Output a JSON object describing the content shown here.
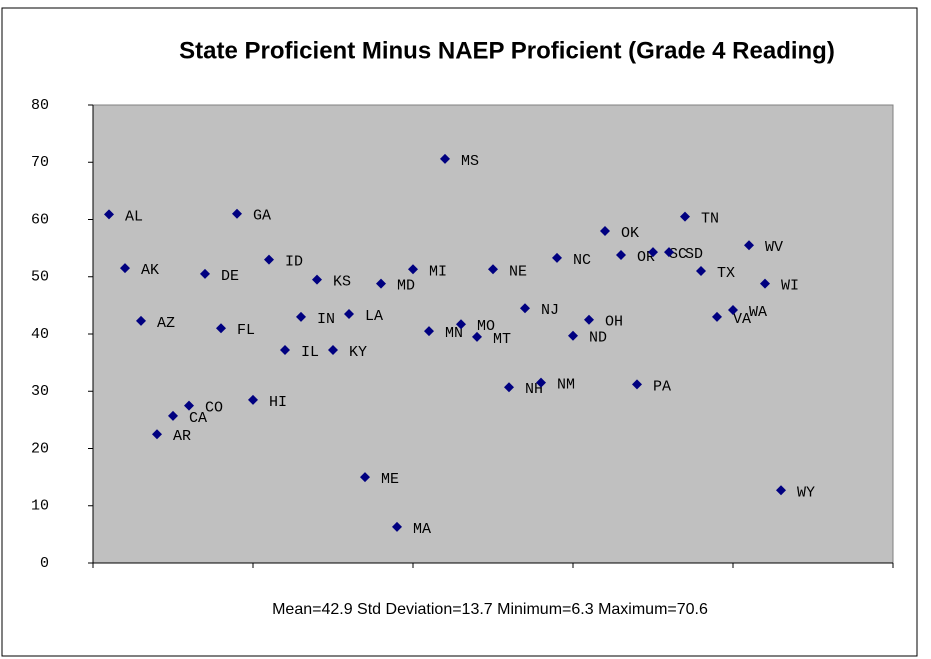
{
  "chart_data": {
    "type": "scatter",
    "title": "State Proficient Minus NAEP Proficient (Grade 4 Reading)",
    "annotation": "Mean=42.9 Std Deviation=13.7 Minimum=6.3 Maximum=70.6",
    "x": [
      1,
      2,
      3,
      4,
      5,
      6,
      7,
      8,
      9,
      10,
      11,
      12,
      13,
      14,
      15,
      16,
      17,
      18,
      19,
      20,
      21,
      22,
      23,
      24,
      25,
      26,
      27,
      28,
      29,
      30,
      31,
      32,
      33,
      34,
      35,
      36,
      37,
      38,
      39,
      40,
      41,
      42,
      43
    ],
    "values": [
      60.9,
      51.5,
      42.3,
      22.5,
      25.7,
      27.5,
      50.5,
      41,
      61,
      28.5,
      53,
      37.2,
      43,
      49.5,
      37.2,
      43.5,
      15,
      48.8,
      6.3,
      51.3,
      40.5,
      70.6,
      41.7,
      39.5,
      51.3,
      30.7,
      44.5,
      31.5,
      53.3,
      39.7,
      42.5,
      58,
      53.8,
      31.2,
      54.3,
      54.3,
      60.5,
      51,
      43,
      44.2,
      55.5,
      48.8,
      12.7
    ],
    "point_labels": [
      "AL",
      "AK",
      "AZ",
      "AR",
      "CA",
      "CO",
      "DE",
      "FL",
      "GA",
      "HI",
      "ID",
      "IL",
      "IN",
      "KS",
      "KY",
      "LA",
      "ME",
      "MD",
      "MA",
      "MI",
      "MN",
      "MS",
      "MO",
      "MT",
      "NE",
      "NH",
      "NJ",
      "NM",
      "NC",
      "ND",
      "OH",
      "OK",
      "OR",
      "PA",
      "SC",
      "SD",
      "TN",
      "TX",
      "VA",
      "WA",
      "WV",
      "WI",
      "WY"
    ],
    "color": "#000080",
    "plot_background": "#c0c0c0",
    "xlim": [
      0,
      50
    ],
    "xticks": [
      0,
      10,
      20,
      30,
      40,
      50
    ],
    "ylim": [
      0,
      80
    ],
    "yticks": [
      0,
      10,
      20,
      30,
      40,
      50,
      60,
      70,
      80
    ]
  }
}
